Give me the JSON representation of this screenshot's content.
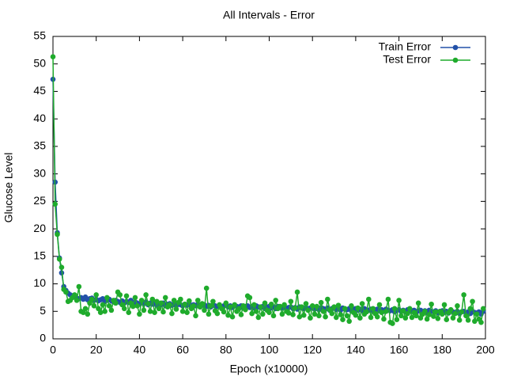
{
  "chart_data": {
    "type": "line",
    "title": "All Intervals - Error",
    "x_label": "Epoch (x10000)",
    "y_label": "Glucose Level",
    "x": [
      0,
      1,
      2,
      3,
      4,
      5,
      6,
      7,
      8,
      9,
      10,
      11,
      12,
      13,
      14,
      15,
      16,
      17,
      18,
      19,
      20,
      21,
      22,
      23,
      24,
      25,
      26,
      27,
      28,
      29,
      30,
      31,
      32,
      33,
      34,
      35,
      36,
      37,
      38,
      39,
      40,
      41,
      42,
      43,
      44,
      45,
      46,
      47,
      48,
      49,
      50,
      51,
      52,
      53,
      54,
      55,
      56,
      57,
      58,
      59,
      60,
      61,
      62,
      63,
      64,
      65,
      66,
      67,
      68,
      69,
      70,
      71,
      72,
      73,
      74,
      75,
      76,
      77,
      78,
      79,
      80,
      81,
      82,
      83,
      84,
      85,
      86,
      87,
      88,
      89,
      90,
      91,
      92,
      93,
      94,
      95,
      96,
      97,
      98,
      99,
      100,
      101,
      102,
      103,
      104,
      105,
      106,
      107,
      108,
      109,
      110,
      111,
      112,
      113,
      114,
      115,
      116,
      117,
      118,
      119,
      120,
      121,
      122,
      123,
      124,
      125,
      126,
      127,
      128,
      129,
      130,
      131,
      132,
      133,
      134,
      135,
      136,
      137,
      138,
      139,
      140,
      141,
      142,
      143,
      144,
      145,
      146,
      147,
      148,
      149,
      150,
      151,
      152,
      153,
      154,
      155,
      156,
      157,
      158,
      159,
      160,
      161,
      162,
      163,
      164,
      165,
      166,
      167,
      168,
      169,
      170,
      171,
      172,
      173,
      174,
      175,
      176,
      177,
      178,
      179,
      180,
      181,
      182,
      183,
      184,
      185,
      186,
      187,
      188,
      189,
      190,
      191,
      192,
      193,
      194,
      195,
      196,
      197,
      198,
      199
    ],
    "series": [
      {
        "name": "Train Error",
        "color": "#2251a8",
        "values": [
          47.2,
          28.5,
          19.3,
          14.7,
          12.0,
          9.5,
          8.8,
          8.3,
          8.0,
          7.8,
          7.6,
          7.4,
          7.3,
          7.5,
          7.2,
          7.6,
          7.1,
          7.3,
          7.4,
          7.0,
          7.2,
          6.9,
          7.1,
          7.3,
          6.8,
          7.0,
          7.2,
          6.9,
          6.7,
          7.0,
          6.8,
          6.6,
          6.9,
          6.5,
          6.8,
          6.6,
          7.0,
          6.4,
          6.7,
          6.5,
          6.3,
          6.6,
          6.4,
          6.7,
          6.2,
          6.5,
          6.3,
          6.6,
          6.1,
          6.4,
          6.2,
          6.5,
          6.0,
          6.3,
          6.4,
          6.1,
          6.3,
          6.0,
          6.4,
          6.2,
          6.0,
          6.3,
          6.1,
          6.4,
          5.9,
          6.2,
          6.0,
          6.3,
          5.8,
          6.1,
          6.2,
          5.9,
          6.1,
          5.8,
          6.2,
          6.0,
          5.9,
          6.1,
          5.7,
          6.0,
          6.1,
          5.8,
          6.0,
          5.7,
          6.1,
          5.9,
          5.8,
          6.0,
          5.6,
          5.9,
          6.0,
          5.7,
          5.9,
          5.6,
          6.0,
          5.8,
          5.7,
          5.9,
          5.5,
          5.8,
          5.9,
          5.6,
          5.8,
          5.5,
          5.9,
          5.7,
          5.6,
          5.8,
          5.4,
          5.7,
          5.8,
          5.5,
          5.7,
          5.4,
          5.8,
          5.6,
          5.5,
          5.7,
          5.3,
          5.6,
          5.7,
          5.4,
          5.6,
          5.3,
          5.7,
          5.5,
          5.4,
          5.6,
          5.2,
          5.5,
          5.6,
          5.3,
          5.5,
          5.2,
          5.6,
          5.4,
          5.3,
          5.5,
          5.1,
          5.4,
          5.5,
          5.2,
          5.4,
          5.1,
          5.5,
          5.3,
          5.2,
          5.4,
          5.0,
          5.3,
          5.4,
          5.1,
          5.3,
          5.0,
          5.4,
          5.2,
          5.1,
          5.3,
          4.9,
          5.2,
          5.3,
          5.0,
          5.2,
          4.9,
          5.3,
          5.1,
          5.0,
          5.2,
          4.8,
          5.1,
          5.2,
          4.9,
          5.1,
          4.8,
          5.2,
          5.0,
          4.9,
          5.1,
          4.7,
          5.0,
          5.1,
          4.8,
          5.0,
          4.7,
          5.1,
          4.9,
          4.8,
          5.0,
          4.6,
          4.9,
          5.0,
          4.7,
          4.9,
          4.6,
          5.0,
          4.8,
          4.7,
          4.9,
          4.5,
          5.0
        ]
      },
      {
        "name": "Test Error",
        "color": "#1fab2c",
        "values": [
          51.3,
          24.5,
          19.0,
          14.5,
          13.0,
          9.0,
          8.5,
          6.8,
          7.0,
          7.5,
          8.0,
          7.0,
          9.5,
          5.0,
          4.8,
          5.5,
          4.5,
          6.5,
          7.2,
          6.0,
          8.0,
          5.5,
          4.8,
          6.2,
          5.0,
          7.5,
          6.0,
          5.2,
          7.0,
          6.5,
          8.5,
          8.0,
          6.2,
          5.5,
          7.8,
          4.8,
          6.5,
          5.9,
          7.5,
          6.0,
          4.5,
          7.0,
          5.2,
          8.0,
          6.4,
          5.0,
          7.2,
          4.8,
          6.8,
          5.5,
          6.5,
          4.9,
          7.5,
          5.8,
          6.2,
          4.6,
          7.0,
          5.4,
          6.6,
          7.2,
          5.0,
          6.3,
          4.8,
          6.9,
          5.5,
          6.0,
          4.2,
          7.0,
          5.8,
          6.4,
          5.2,
          9.2,
          4.5,
          6.0,
          6.8,
          5.1,
          4.6,
          6.2,
          5.5,
          4.9,
          6.5,
          4.3,
          5.8,
          4.0,
          6.2,
          5.0,
          5.5,
          4.4,
          6.0,
          5.3,
          7.8,
          7.5,
          4.6,
          6.2,
          5.0,
          3.9,
          5.8,
          4.5,
          6.5,
          5.2,
          4.8,
          6.3,
          4.2,
          7.0,
          5.5,
          5.9,
          4.5,
          6.2,
          5.0,
          4.7,
          6.8,
          4.4,
          5.6,
          8.5,
          4.0,
          5.8,
          4.3,
          6.4,
          5.2,
          3.8,
          6.0,
          4.5,
          5.9,
          4.2,
          6.6,
          5.0,
          4.0,
          7.2,
          5.3,
          4.6,
          5.8,
          3.9,
          6.1,
          4.4,
          3.5,
          5.5,
          4.2,
          3.2,
          6.0,
          4.8,
          4.3,
          5.6,
          3.8,
          6.4,
          4.5,
          4.9,
          7.2,
          3.9,
          5.5,
          4.6,
          4.0,
          6.2,
          4.8,
          3.6,
          5.0,
          7.2,
          3.0,
          2.8,
          5.5,
          3.5,
          7.0,
          4.2,
          5.1,
          3.8,
          4.6,
          5.5,
          3.9,
          4.8,
          4.2,
          6.5,
          3.8,
          4.5,
          5.0,
          3.6,
          4.4,
          6.3,
          4.1,
          4.9,
          3.7,
          5.0,
          4.5,
          6.2,
          3.5,
          4.8,
          5.3,
          3.8,
          4.6,
          6.0,
          3.4,
          4.9,
          8.0,
          4.2,
          3.4,
          5.5,
          6.8,
          3.2,
          4.5,
          3.6,
          3.0,
          5.5
        ]
      }
    ],
    "xlim": [
      0,
      200
    ],
    "xticks": [
      0,
      20,
      40,
      60,
      80,
      100,
      120,
      140,
      160,
      180,
      200
    ],
    "ylim": [
      0,
      55
    ],
    "yticks": [
      0,
      5,
      10,
      15,
      20,
      25,
      30,
      35,
      40,
      45,
      50,
      55
    ],
    "legend": "top-right"
  }
}
